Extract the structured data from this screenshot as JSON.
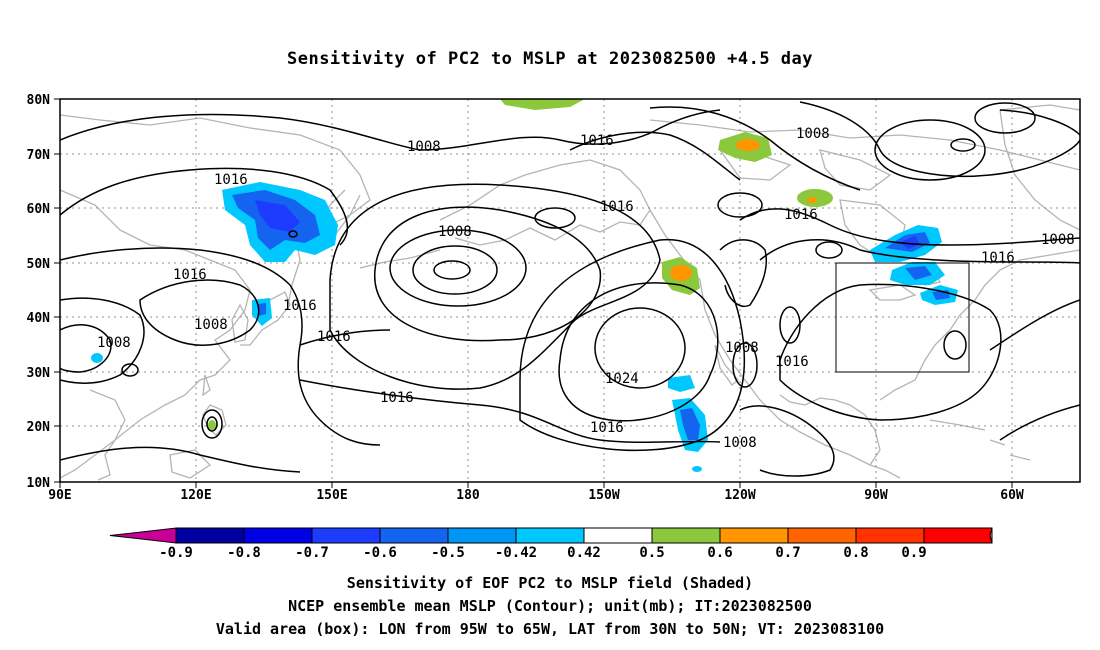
{
  "title": "Sensitivity of PC2 to MSLP at 2023082500 +4.5 day",
  "lat_labels": [
    "80N",
    "70N",
    "60N",
    "50N",
    "40N",
    "30N",
    "20N",
    "10N"
  ],
  "lon_labels": [
    "90E",
    "120E",
    "150E",
    "180",
    "150W",
    "120W",
    "90W",
    "60W"
  ],
  "contour_labels": [
    "1008",
    "1016",
    "1008",
    "1016",
    "1016",
    "1008",
    "1016",
    "1008",
    "1016",
    "1016",
    "1016",
    "1008",
    "1008",
    "1016",
    "1008",
    "1016",
    "1024",
    "1016",
    "1016",
    "1008",
    "1008",
    "1016"
  ],
  "colorbar": {
    "labels": [
      "-0.9",
      "-0.8",
      "-0.7",
      "-0.6",
      "-0.5",
      "-0.42",
      "0.42",
      "0.5",
      "0.6",
      "0.7",
      "0.8",
      "0.9"
    ],
    "colors": [
      "#c80096",
      "#0000a0",
      "#0000e6",
      "#1e3cff",
      "#1464f0",
      "#0096f5",
      "#00c8ff",
      "#ffffff",
      "#8cc83c",
      "#ff9600",
      "#ff6400",
      "#ff3200",
      "#ff0000",
      "#ff96c8"
    ]
  },
  "captions": [
    "Sensitivity of EOF PC2 to MSLP field (Shaded)",
    "NCEP ensemble mean MSLP (Contour); unit(mb); IT:2023082500",
    "Valid area (box): LON from 95W to 65W, LAT from 30N to 50N; VT: 2023083100"
  ]
}
